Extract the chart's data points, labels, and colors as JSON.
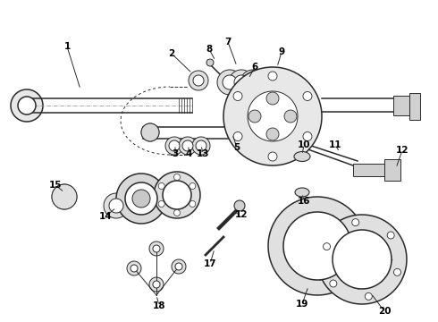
{
  "bg_color": "#ffffff",
  "line_color": "#2a2a2a",
  "text_color": "#000000",
  "lw_main": 1.1,
  "lw_thin": 0.7,
  "lw_thick": 1.5,
  "figw": 4.9,
  "figh": 3.6,
  "dpi": 100
}
